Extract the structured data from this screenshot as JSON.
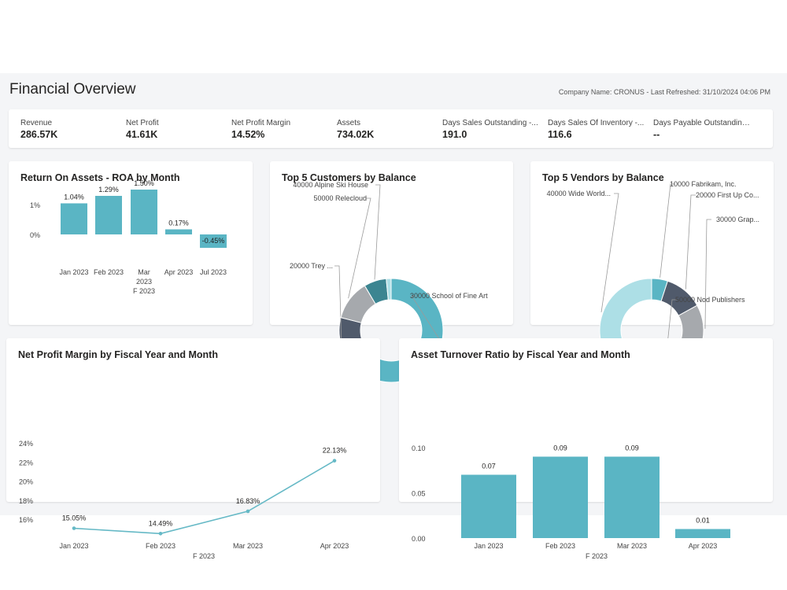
{
  "page": {
    "title": "Financial Overview",
    "company_info": "Company Name: CRONUS - Last Refreshed: 31/10/2024 04:06 PM"
  },
  "kpis": [
    {
      "label": "Revenue",
      "value": "286.57K"
    },
    {
      "label": "Net Profit",
      "value": "41.61K"
    },
    {
      "label": "Net Profit Margin",
      "value": "14.52%"
    },
    {
      "label": "Assets",
      "value": "734.02K"
    },
    {
      "label": "Days Sales Outstanding -...",
      "value": "191.0"
    },
    {
      "label": "Days Sales Of Inventory -...",
      "value": "116.6"
    },
    {
      "label": "Days Payable Outstanding ...",
      "value": "--"
    }
  ],
  "colors": {
    "teal": "#5ab5c4",
    "light_teal": "#addfe6",
    "dark_teal": "#3c8591",
    "slate": "#505a6b",
    "gray": "#a6a9ad",
    "line": "#66b9c6"
  },
  "chart_data": [
    {
      "id": "roa",
      "type": "bar",
      "title": "Return On Assets - ROA by Month",
      "categories": [
        [
          "Jan 2023"
        ],
        [
          "Feb 2023"
        ],
        [
          "Mar",
          "2023"
        ],
        [
          "Apr 2023"
        ],
        [
          "Jul 2023"
        ]
      ],
      "values": [
        1.04,
        1.29,
        1.5,
        0.17,
        -0.45
      ],
      "data_labels": [
        "1.04%",
        "1.29%",
        "1.50%",
        "0.17%",
        "-0.45%"
      ],
      "y_ticks": [
        {
          "value": 1,
          "label": "1%"
        },
        {
          "value": 0,
          "label": "0%"
        }
      ],
      "group_label": "F 2023"
    },
    {
      "id": "customers",
      "type": "pie",
      "title": "Top 5 Customers by Balance",
      "slices": [
        {
          "label": "30000 School of Fine Art",
          "value": 58.5,
          "color": "#5ab5c4"
        },
        {
          "label": "20000 Trey ...",
          "value": 20.5,
          "color": "#505a6b"
        },
        {
          "label": "50000 Relecloud",
          "value": 12.5,
          "color": "#a6a9ad"
        },
        {
          "label": "40000 Alpine Ski House",
          "value": 7.0,
          "color": "#3c8591"
        },
        {
          "label": "",
          "value": 1.5,
          "color": "#addfe6"
        }
      ]
    },
    {
      "id": "vendors",
      "type": "pie",
      "title": "Top 5 Vendors by Balance",
      "slices": [
        {
          "label": "10000 Fabrikam, Inc.",
          "value": 5,
          "color": "#5ab5c4"
        },
        {
          "label": "20000 First Up Co...",
          "value": 12,
          "color": "#505a6b"
        },
        {
          "label": "30000 Grap...",
          "value": 15,
          "color": "#a6a9ad"
        },
        {
          "label": "50000 Nod Publishers",
          "value": 29,
          "color": "#3c8591"
        },
        {
          "label": "40000 Wide World...",
          "value": 39,
          "color": "#addfe6"
        }
      ]
    },
    {
      "id": "npm",
      "type": "line",
      "title": "Net Profit Margin by Fiscal Year and Month",
      "categories": [
        "Jan 2023",
        "Feb 2023",
        "Mar 2023",
        "Apr 2023"
      ],
      "values": [
        15.05,
        14.49,
        16.83,
        22.13
      ],
      "data_labels": [
        "15.05%",
        "14.49%",
        "16.83%",
        "22.13%"
      ],
      "y_ticks": [
        "24%",
        "22%",
        "20%",
        "18%",
        "16%"
      ],
      "ylim": [
        14,
        24
      ],
      "group_label": "F 2023"
    },
    {
      "id": "atr",
      "type": "bar",
      "title": "Asset Turnover Ratio by Fiscal Year and Month",
      "categories": [
        "Jan 2023",
        "Feb 2023",
        "Mar 2023",
        "Apr 2023"
      ],
      "values": [
        0.07,
        0.09,
        0.09,
        0.01
      ],
      "data_labels": [
        "0.07",
        "0.09",
        "0.09",
        "0.01"
      ],
      "y_ticks": [
        "0.10",
        "0.05",
        "0.00"
      ],
      "ylim": [
        0,
        0.1
      ],
      "group_label": "F 2023"
    }
  ]
}
